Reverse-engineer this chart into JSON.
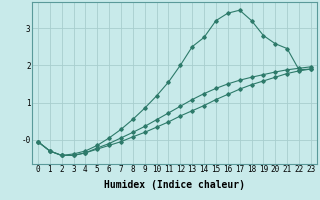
{
  "xlabel": "Humidex (Indice chaleur)",
  "ylabel": "",
  "bg_color": "#c8eaea",
  "line_color": "#2d7a6a",
  "grid_color": "#a8cece",
  "xlim": [
    -0.5,
    23.5
  ],
  "ylim": [
    -0.65,
    3.7
  ],
  "yticks": [
    0,
    1,
    2,
    3
  ],
  "ytick_labels": [
    "-0",
    "1",
    "2",
    "3"
  ],
  "curve1_x": [
    0,
    1,
    2,
    3,
    4,
    5,
    6,
    7,
    8,
    9,
    10,
    11,
    12,
    13,
    14,
    15,
    16,
    17,
    18,
    19,
    20,
    21,
    22,
    23
  ],
  "curve1_y": [
    -0.05,
    -0.3,
    -0.42,
    -0.42,
    -0.35,
    -0.25,
    -0.15,
    -0.05,
    0.08,
    0.2,
    0.34,
    0.48,
    0.64,
    0.78,
    0.92,
    1.08,
    1.22,
    1.36,
    1.48,
    1.58,
    1.68,
    1.78,
    1.85,
    1.9
  ],
  "curve2_x": [
    0,
    1,
    2,
    3,
    4,
    5,
    6,
    7,
    8,
    9,
    10,
    11,
    12,
    13,
    14,
    15,
    16,
    17,
    18,
    19,
    20,
    21,
    22,
    23
  ],
  "curve2_y": [
    -0.05,
    -0.3,
    -0.42,
    -0.42,
    -0.35,
    -0.22,
    -0.1,
    0.05,
    0.2,
    0.36,
    0.54,
    0.72,
    0.9,
    1.08,
    1.24,
    1.38,
    1.5,
    1.6,
    1.68,
    1.75,
    1.82,
    1.88,
    1.92,
    1.96
  ],
  "curve3_x": [
    0,
    1,
    2,
    3,
    4,
    5,
    6,
    7,
    8,
    9,
    10,
    11,
    12,
    13,
    14,
    15,
    16,
    17,
    18,
    19,
    20,
    21,
    22,
    23
  ],
  "curve3_y": [
    -0.05,
    -0.3,
    -0.42,
    -0.38,
    -0.3,
    -0.15,
    0.05,
    0.28,
    0.55,
    0.85,
    1.18,
    1.55,
    2.0,
    2.5,
    2.75,
    3.2,
    3.4,
    3.48,
    3.2,
    2.8,
    2.58,
    2.45,
    1.88,
    1.9
  ],
  "xticks": [
    0,
    1,
    2,
    3,
    4,
    5,
    6,
    7,
    8,
    9,
    10,
    11,
    12,
    13,
    14,
    15,
    16,
    17,
    18,
    19,
    20,
    21,
    22,
    23
  ],
  "title_fontsize": 7,
  "axis_fontsize": 7,
  "tick_fontsize": 5.5
}
